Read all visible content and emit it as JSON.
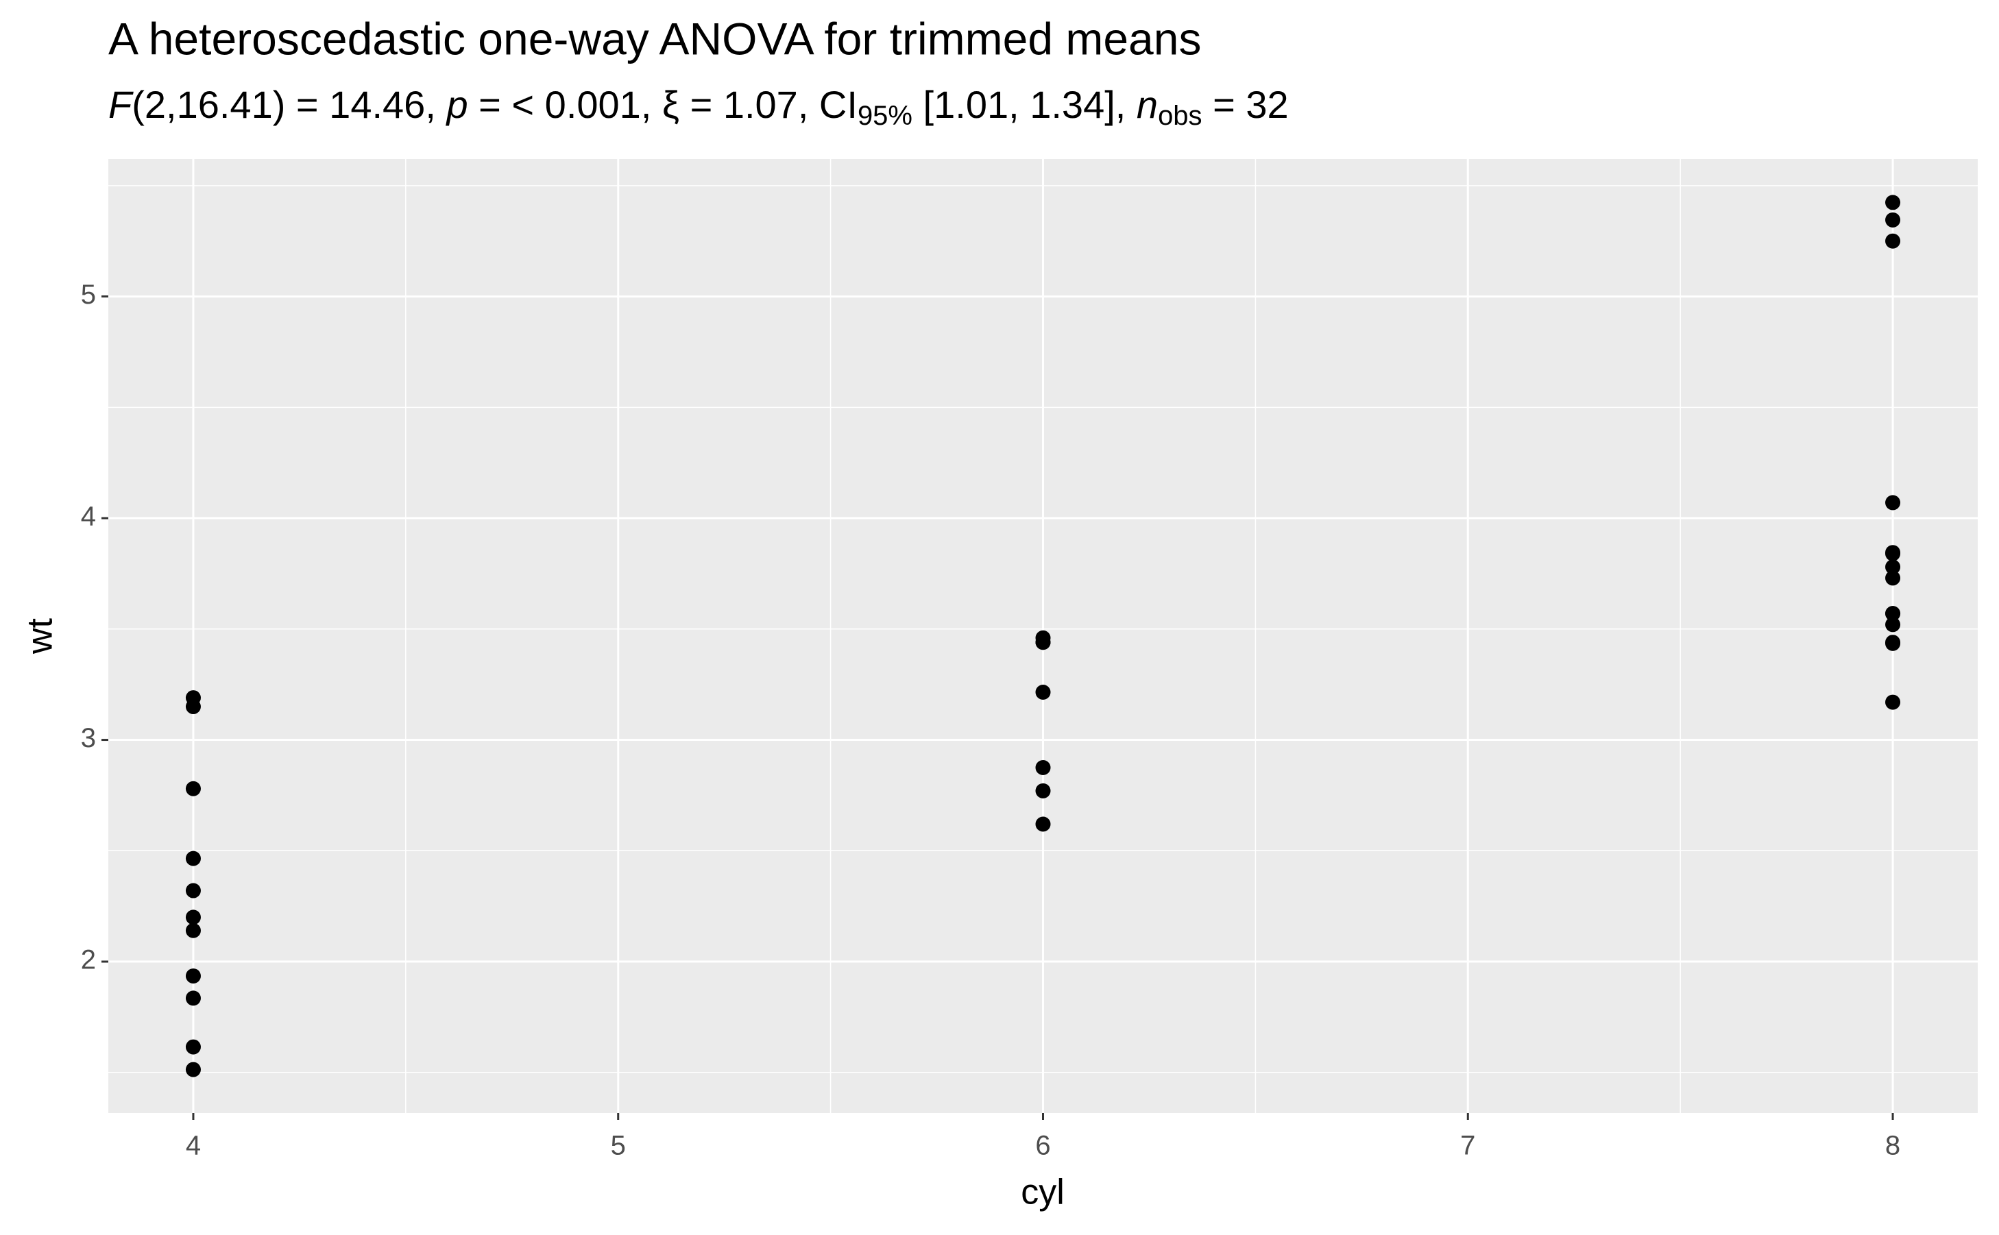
{
  "chart_data": {
    "type": "scatter",
    "title": "A heteroscedastic one-way ANOVA for trimmed means",
    "subtitle": [
      {
        "text": "F",
        "style": "italic"
      },
      {
        "text": "(2,16.41) = 14.46, ",
        "style": "normal"
      },
      {
        "text": "p",
        "style": "italic"
      },
      {
        "text": " = < 0.001, ξ = 1.07, CI",
        "style": "normal"
      },
      {
        "text": "95%",
        "style": "sub"
      },
      {
        "text": " [1.01, 1.34], ",
        "style": "normal"
      },
      {
        "text": "n",
        "style": "italic"
      },
      {
        "text": "obs",
        "style": "sub"
      },
      {
        "text": " = 32",
        "style": "normal"
      }
    ],
    "x_label": "cyl",
    "y_label": "wt",
    "x": [
      4,
      4,
      4,
      4,
      4,
      4,
      4,
      4,
      4,
      4,
      4,
      6,
      6,
      6,
      6,
      6,
      6,
      6,
      8,
      8,
      8,
      8,
      8,
      8,
      8,
      8,
      8,
      8,
      8,
      8,
      8,
      8
    ],
    "values": [
      2.32,
      3.19,
      3.15,
      2.2,
      1.615,
      1.835,
      2.465,
      1.935,
      2.14,
      1.513,
      2.78,
      2.62,
      2.875,
      3.215,
      3.44,
      3.44,
      3.46,
      2.77,
      3.44,
      3.57,
      4.07,
      3.73,
      3.78,
      5.25,
      5.424,
      5.345,
      3.52,
      3.435,
      3.84,
      3.845,
      3.17,
      3.57
    ],
    "color": "#000000",
    "xlim": [
      3.8,
      8.2
    ],
    "ylim": [
      1.317,
      5.62
    ],
    "xticks": [
      4,
      5,
      6,
      7,
      8
    ],
    "yticks": [
      2,
      3,
      4,
      5
    ],
    "x_minor_grid": [
      4.5,
      5.5,
      6.5,
      7.5
    ],
    "y_minor_grid": [
      1.5,
      2.5,
      3.5,
      4.5,
      5.5
    ],
    "grid": true
  }
}
